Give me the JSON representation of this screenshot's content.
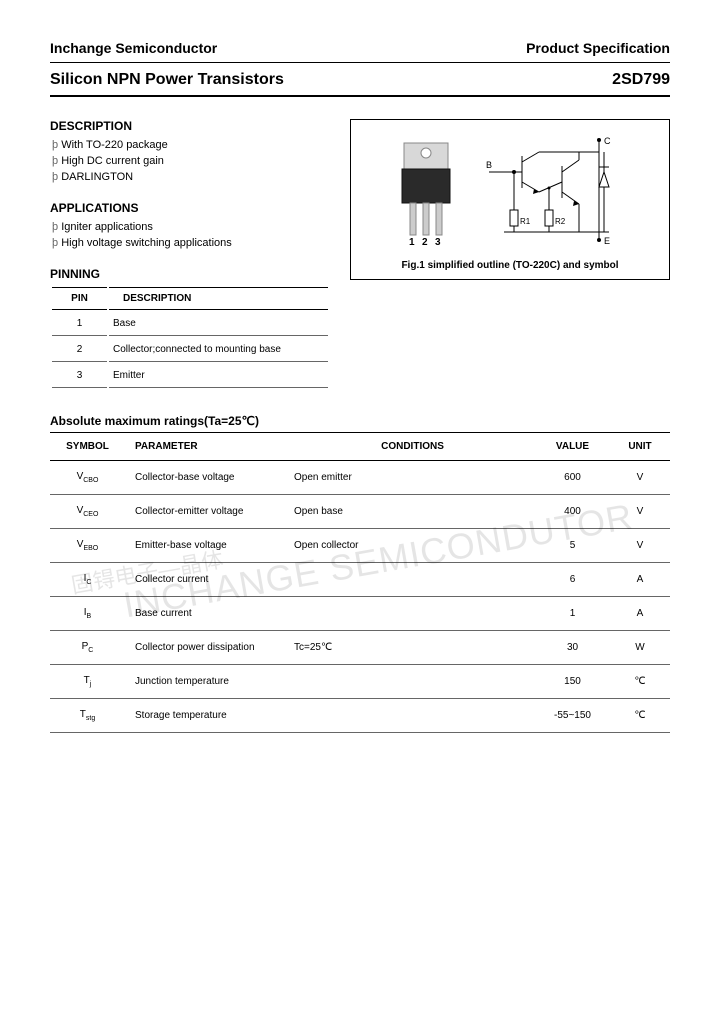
{
  "header": {
    "company": "Inchange Semiconductor",
    "docType": "Product Specification"
  },
  "title": {
    "product": "Silicon NPN Power Transistors",
    "partNumber": "2SD799"
  },
  "description": {
    "heading": "DESCRIPTION",
    "items": [
      "With TO-220 package",
      "High DC current gain",
      "DARLINGTON"
    ]
  },
  "applications": {
    "heading": "APPLICATIONS",
    "items": [
      "Igniter applications",
      "High voltage switching applications"
    ]
  },
  "pinning": {
    "heading": "PINNING",
    "columns": [
      "PIN",
      "DESCRIPTION"
    ],
    "rows": [
      {
        "pin": "1",
        "desc": "Base"
      },
      {
        "pin": "2",
        "desc": "Collector;connected to mounting base"
      },
      {
        "pin": "3",
        "desc": "Emitter"
      }
    ]
  },
  "figure": {
    "caption": "Fig.1 simplified outline (TO-220C) and symbol",
    "pinLabels": "1 2 3",
    "symbolLabels": {
      "B": "B",
      "C": "C",
      "E": "E",
      "R1": "R1",
      "R2": "R2"
    }
  },
  "ratings": {
    "heading": "Absolute maximum ratings(Ta=25℃)",
    "columns": [
      "SYMBOL",
      "PARAMETER",
      "CONDITIONS",
      "VALUE",
      "UNIT"
    ],
    "rows": [
      {
        "sym": "V",
        "sub": "CBO",
        "param": "Collector-base voltage",
        "cond": "Open emitter",
        "val": "600",
        "unit": "V"
      },
      {
        "sym": "V",
        "sub": "CEO",
        "param": "Collector-emitter voltage",
        "cond": "Open base",
        "val": "400",
        "unit": "V"
      },
      {
        "sym": "V",
        "sub": "EBO",
        "param": "Emitter-base voltage",
        "cond": "Open collector",
        "val": "5",
        "unit": "V"
      },
      {
        "sym": "I",
        "sub": "C",
        "param": "Collector current",
        "cond": "",
        "val": "6",
        "unit": "A"
      },
      {
        "sym": "I",
        "sub": "B",
        "param": "Base current",
        "cond": "",
        "val": "1",
        "unit": "A"
      },
      {
        "sym": "P",
        "sub": "C",
        "param": "Collector power dissipation",
        "cond": "Tc=25℃",
        "val": "30",
        "unit": "W"
      },
      {
        "sym": "T",
        "sub": "j",
        "param": "Junction temperature",
        "cond": "",
        "val": "150",
        "unit": "℃"
      },
      {
        "sym": "T",
        "sub": "stg",
        "param": "Storage temperature",
        "cond": "",
        "val": "-55~150",
        "unit": "℃"
      }
    ]
  },
  "watermark": {
    "line1": "INCHANGE SEMICONDUTOR",
    "line2": "固锝电子—晶体"
  }
}
